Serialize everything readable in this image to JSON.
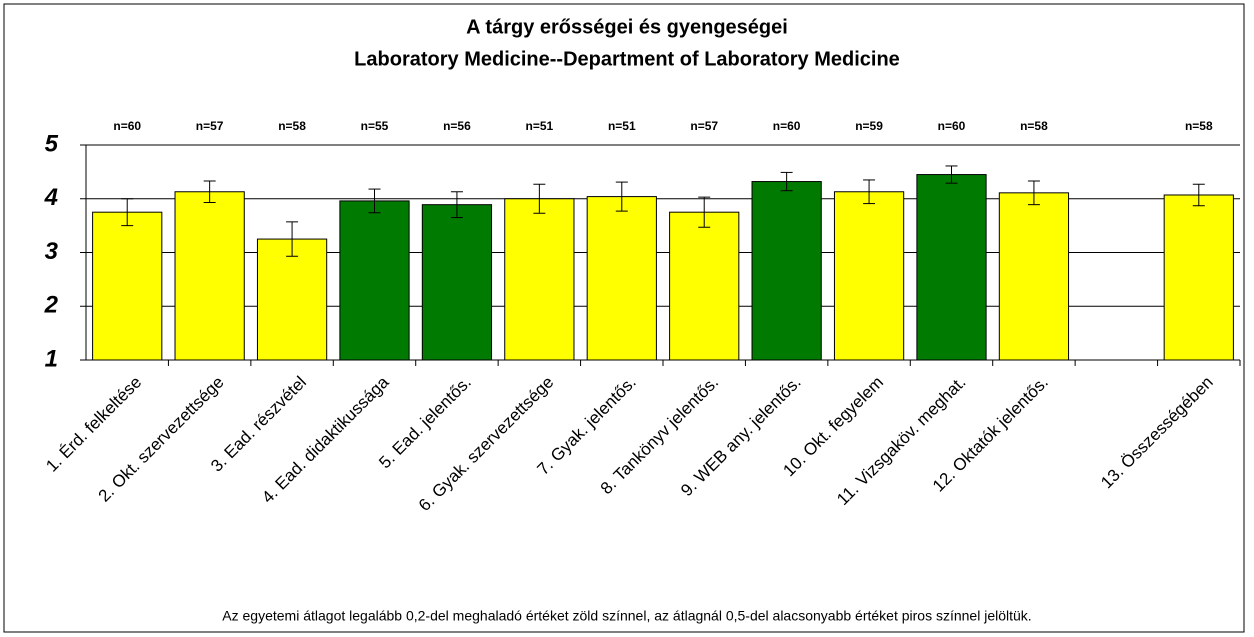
{
  "chart_data": {
    "type": "bar",
    "title": "A tárgy erősségei és gyengeségei",
    "subtitle": "Laboratory Medicine--Department of Laboratory Medicine",
    "categories": [
      "1. Érd. felkeltése",
      "2. Okt. szervezettsége",
      "3. Ead. részvétel",
      "4. Ead. didaktikussága",
      "5. Ead. jelentős.",
      "6. Gyak. szervezettsége",
      "7. Gyak. jelentős.",
      "8. Tankönyv jelentős.",
      "9. WEB any. jelentős.",
      "10. Okt. fegyelem",
      "11. Vizsgaköv. meghat.",
      "12. Oktatók jelentős.",
      null,
      "13. Összességében"
    ],
    "values": [
      3.75,
      4.13,
      3.25,
      3.96,
      3.89,
      4.0,
      4.04,
      3.75,
      4.32,
      4.13,
      4.45,
      4.11,
      null,
      4.07
    ],
    "errors": [
      0.25,
      0.2,
      0.32,
      0.22,
      0.24,
      0.27,
      0.27,
      0.28,
      0.17,
      0.22,
      0.16,
      0.22,
      null,
      0.2
    ],
    "n_labels": [
      "n=60",
      "n=57",
      "n=58",
      "n=55",
      "n=56",
      "n=51",
      "n=51",
      "n=57",
      "n=60",
      "n=59",
      "n=60",
      "n=58",
      null,
      "n=58"
    ],
    "colors": [
      "#ffff00",
      "#ffff00",
      "#ffff00",
      "#007a00",
      "#007a00",
      "#ffff00",
      "#ffff00",
      "#ffff00",
      "#007a00",
      "#ffff00",
      "#007a00",
      "#ffff00",
      null,
      "#ffff00"
    ],
    "ylim": [
      1,
      5
    ],
    "yticks": [
      1,
      2,
      3,
      4,
      5
    ],
    "grid": true,
    "note": "Az egyetemi átlagot legalább 0,2-del meghaladó értéket zöld színnel, az átlagnál 0,5-del alacsonyabb értéket piros színnel jelöltük."
  }
}
